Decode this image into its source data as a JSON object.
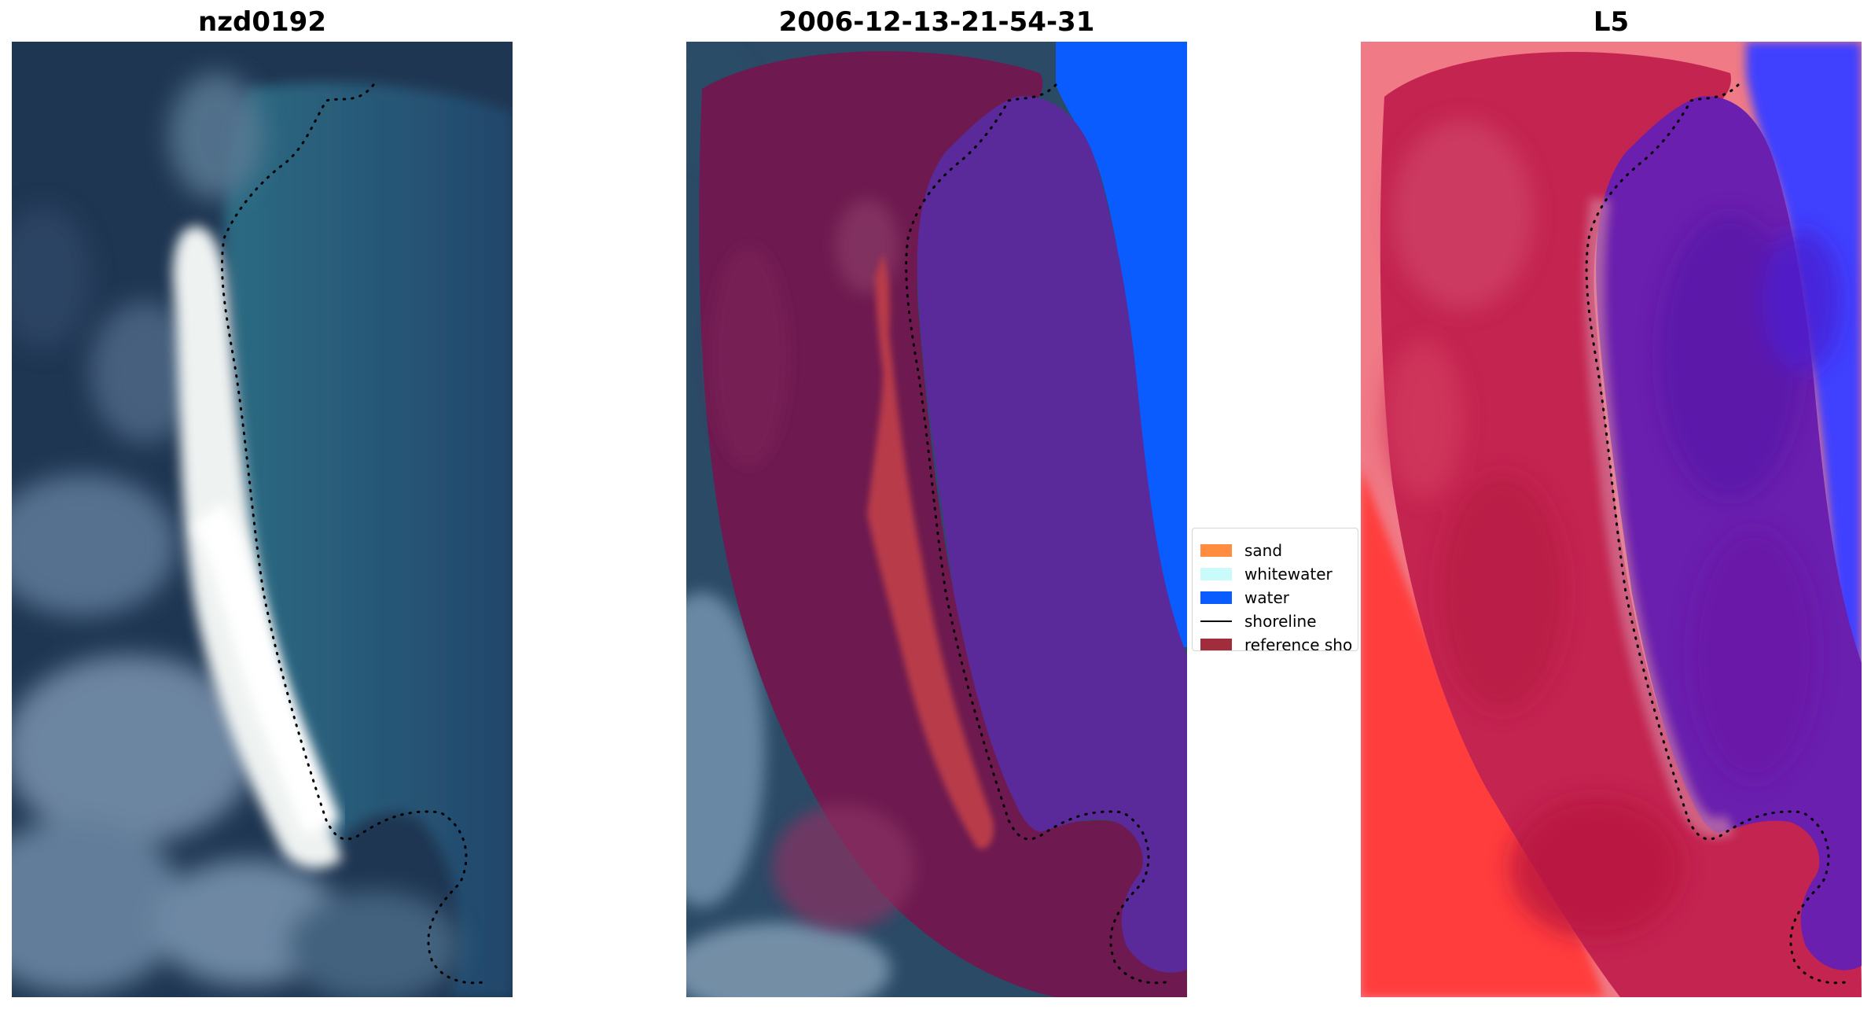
{
  "panels": [
    {
      "title": "nzd0192",
      "kind": "rgb-satellite-image",
      "colors": {
        "land_dark": "#1f3652",
        "beach": "#f2f4f2",
        "lagoon": "#2a5e7a",
        "reef": "#6f8aa8"
      }
    },
    {
      "title": "2006-12-13-21-54-31",
      "kind": "classified-overlay",
      "colors": {
        "land_overlay": "#6a1a4f",
        "sand_overlay": "#b93a4a",
        "water_overlay": "#5a2a9a",
        "open_water": "#0a5cff"
      }
    },
    {
      "title": "L5",
      "kind": "index-image",
      "colors": {
        "land": "#c7224a",
        "water": "#5a1ab0",
        "edge_red": "#ff3b3b",
        "edge_blue": "#3a3aff"
      }
    }
  ],
  "legend": {
    "items": [
      {
        "label": "sand",
        "type": "patch",
        "color": "#ff8c3f"
      },
      {
        "label": "whitewater",
        "type": "patch",
        "color": "#c9fbfb"
      },
      {
        "label": "water",
        "type": "patch",
        "color": "#0a5cff"
      },
      {
        "label": "shoreline",
        "type": "line",
        "color": "#000000"
      },
      {
        "label": "reference sho",
        "type": "patch",
        "color": "#a02c3c"
      }
    ]
  },
  "icons": {
    "shoreline": "dotted-shoreline-line"
  }
}
